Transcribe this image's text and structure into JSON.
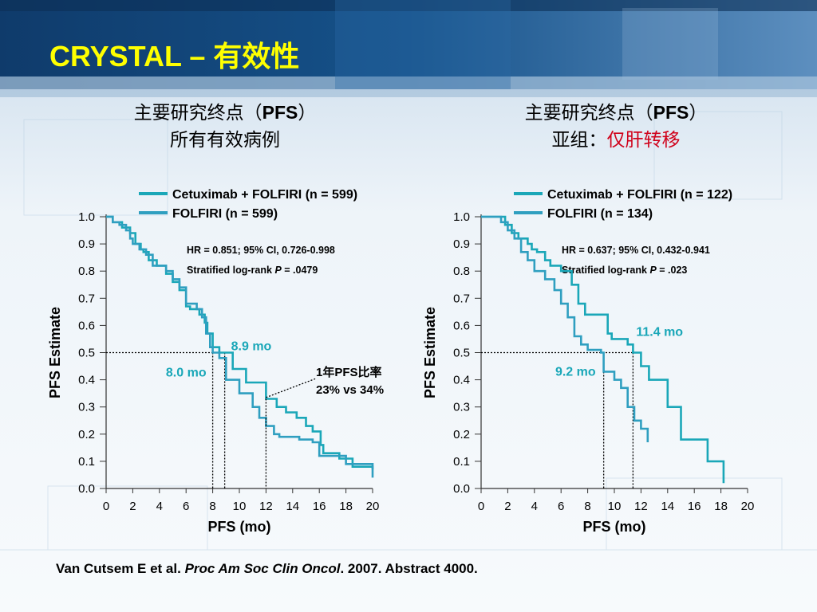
{
  "slide": {
    "title": "CRYSTAL – 有效性",
    "citation_pre": "Van Cutsem E et al. ",
    "citation_journal": "Proc Am Soc Clin Oncol",
    "citation_post": ". 2007. Abstract 4000.",
    "colors": {
      "series_main": "#1aa7b8",
      "series_comparator": "#2f9fc0",
      "title": "#ffff00",
      "highlight_red": "#d0021b",
      "annotation_teal": "#1aa7b8"
    }
  },
  "panels": [
    {
      "heading_line1_prefix": "主要研究终点（",
      "heading_line1_bold": "PFS",
      "heading_line1_suffix": "）",
      "heading_line2": "所有有效病例",
      "heading_line2_red": ""
    },
    {
      "heading_line1_prefix": "主要研究终点（",
      "heading_line1_bold": "PFS",
      "heading_line1_suffix": "）",
      "heading_line2": "亚组：",
      "heading_line2_red": "仅肝转移"
    }
  ],
  "chart_data": [
    {
      "type": "line",
      "step": true,
      "xlabel": "PFS (mo)",
      "ylabel": "PFS Estimate",
      "xlim": [
        0,
        20
      ],
      "ylim": [
        0.0,
        1.0
      ],
      "xticks": [
        "0",
        "2",
        "4",
        "6",
        "8",
        "10",
        "12",
        "14",
        "16",
        "18",
        "20"
      ],
      "yticks": [
        "0.0",
        "0.1",
        "0.2",
        "0.3",
        "0.4",
        "0.5",
        "0.6",
        "0.7",
        "0.8",
        "0.9",
        "1.0"
      ],
      "legend_position": "top",
      "series": [
        {
          "name": "Cetuximab + FOLFIRI (n = 599)",
          "x": [
            0,
            0.5,
            1.2,
            1.8,
            2.2,
            2.6,
            2.8,
            3.2,
            3.8,
            4.5,
            5.0,
            5.5,
            6.0,
            6.3,
            7.0,
            7.4,
            7.6,
            8.0,
            8.5,
            8.9,
            9.5,
            10.5,
            12.0,
            12.8,
            13.5,
            14.3,
            15.0,
            15.5,
            16.1,
            16.3,
            17.5,
            18.5,
            20.0
          ],
          "y": [
            1.0,
            0.98,
            0.96,
            0.94,
            0.9,
            0.88,
            0.87,
            0.84,
            0.82,
            0.79,
            0.76,
            0.73,
            0.67,
            0.66,
            0.64,
            0.61,
            0.57,
            0.52,
            0.5,
            0.5,
            0.44,
            0.39,
            0.33,
            0.3,
            0.28,
            0.26,
            0.23,
            0.21,
            0.16,
            0.13,
            0.11,
            0.08,
            0.07
          ]
        },
        {
          "name": "FOLFIRI (n = 599)",
          "x": [
            0,
            0.5,
            1.0,
            1.5,
            1.8,
            2.0,
            2.5,
            3.0,
            3.5,
            4.5,
            5.0,
            5.5,
            6.0,
            6.8,
            7.2,
            7.5,
            7.8,
            8.0,
            8.5,
            9.0,
            10.0,
            11.0,
            11.5,
            12.0,
            12.6,
            13.0,
            14.5,
            15.5,
            16.0,
            18.0,
            20.0
          ],
          "y": [
            1.0,
            0.98,
            0.97,
            0.95,
            0.92,
            0.9,
            0.88,
            0.86,
            0.82,
            0.8,
            0.77,
            0.74,
            0.68,
            0.66,
            0.63,
            0.57,
            0.52,
            0.5,
            0.48,
            0.4,
            0.35,
            0.3,
            0.26,
            0.23,
            0.2,
            0.19,
            0.18,
            0.17,
            0.12,
            0.09,
            0.04
          ]
        }
      ],
      "annotations": {
        "hr_text": "HR = 0.851; 95% CI, 0.726-0.998",
        "logrank_prefix": "Stratified log-rank  ",
        "logrank_p_label": "P",
        "logrank_p_value": " = .0479",
        "median_main_label": "8.9 mo",
        "median_main_x": 8.9,
        "median_comparator_label": "8.0 mo",
        "median_comparator_x": 8.0,
        "median_y": 0.5,
        "one_year_line1": "1年PFS比率",
        "one_year_line2": "23% vs 34%",
        "one_year_x": 12
      }
    },
    {
      "type": "line",
      "step": true,
      "xlabel": "PFS (mo)",
      "ylabel": "PFS Estimate",
      "xlim": [
        0,
        20
      ],
      "ylim": [
        0.0,
        1.0
      ],
      "xticks": [
        "0",
        "2",
        "4",
        "6",
        "8",
        "10",
        "12",
        "14",
        "16",
        "18",
        "20"
      ],
      "yticks": [
        "0.0",
        "0.1",
        "0.2",
        "0.3",
        "0.4",
        "0.5",
        "0.6",
        "0.7",
        "0.8",
        "0.9",
        "1.0"
      ],
      "legend_position": "top",
      "series": [
        {
          "name": "Cetuximab + FOLFIRI (n = 122)",
          "x": [
            0,
            1.8,
            2.3,
            2.8,
            3.5,
            3.8,
            4.2,
            4.8,
            5.2,
            6.0,
            6.8,
            7.3,
            7.8,
            9.5,
            9.8,
            11.0,
            11.4,
            12.0,
            12.6,
            14.0,
            15.0,
            17.0,
            18.2
          ],
          "y": [
            1.0,
            0.97,
            0.94,
            0.92,
            0.9,
            0.88,
            0.87,
            0.84,
            0.82,
            0.8,
            0.75,
            0.68,
            0.64,
            0.57,
            0.55,
            0.53,
            0.5,
            0.45,
            0.4,
            0.3,
            0.18,
            0.1,
            0.02
          ]
        },
        {
          "name": "FOLFIRI (n = 134)",
          "x": [
            0,
            1.5,
            2.0,
            2.5,
            3.0,
            3.5,
            4.0,
            4.8,
            5.5,
            6.0,
            6.5,
            7.0,
            7.5,
            8.0,
            9.0,
            9.2,
            10.0,
            10.5,
            11.0,
            11.5,
            12.0,
            12.5
          ],
          "y": [
            1.0,
            0.98,
            0.95,
            0.92,
            0.87,
            0.84,
            0.8,
            0.77,
            0.73,
            0.68,
            0.63,
            0.56,
            0.53,
            0.51,
            0.5,
            0.43,
            0.4,
            0.37,
            0.3,
            0.25,
            0.22,
            0.17
          ]
        }
      ],
      "annotations": {
        "hr_text": "HR = 0.637; 95% CI, 0.432-0.941",
        "logrank_prefix": "Stratified log-rank ",
        "logrank_p_label": "P",
        "logrank_p_value": " = .023",
        "median_main_label": "11.4 mo",
        "median_main_x": 11.4,
        "median_comparator_label": "9.2 mo",
        "median_comparator_x": 9.2,
        "median_y": 0.5,
        "one_year_line1": "",
        "one_year_line2": "",
        "one_year_x": null
      }
    }
  ]
}
